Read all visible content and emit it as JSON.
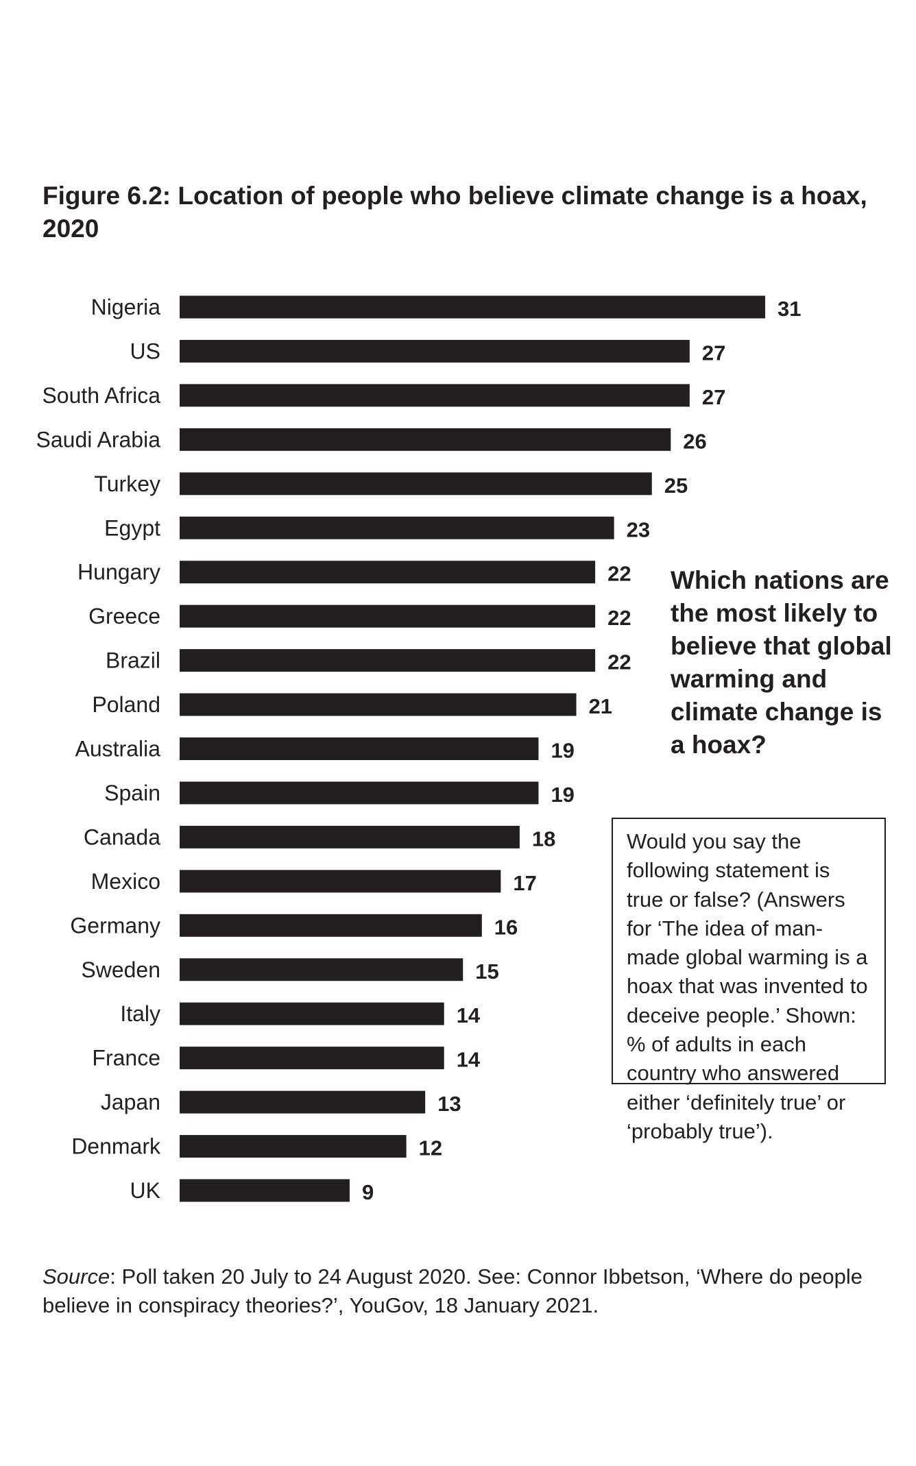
{
  "title": "Figure 6.2: Location of people who believe climate change is a hoax, 2020",
  "question": "Which nations are the most likely to believe that global warming and climate change is a hoax?",
  "note": "Would you say the following statement is true or false? (Answers for ‘The idea of man-made global warming is a hoax that was invented to deceive people.’ Shown: % of adults in each country who answered either ‘definitely true’ or ‘probably true’).",
  "source": {
    "label": "Source",
    "text": ": Poll taken 20 July to 24 August 2020. See: Connor Ibbetson, ‘Where do people believe in conspiracy theories?’, YouGov, 18 January 2021."
  },
  "colors": {
    "bar": "#231f20",
    "text": "#231f20"
  },
  "chart_data": {
    "type": "bar",
    "orientation": "horizontal",
    "title": "Figure 6.2: Location of people who believe climate change is a hoax, 2020",
    "categories": [
      "Nigeria",
      "US",
      "South Africa",
      "Saudi Arabia",
      "Turkey",
      "Egypt",
      "Hungary",
      "Greece",
      "Brazil",
      "Poland",
      "Australia",
      "Spain",
      "Canada",
      "Mexico",
      "Germany",
      "Sweden",
      "Italy",
      "France",
      "Japan",
      "Denmark",
      "UK"
    ],
    "values": [
      31,
      27,
      27,
      26,
      25,
      23,
      22,
      22,
      22,
      21,
      19,
      19,
      18,
      17,
      16,
      15,
      14,
      14,
      13,
      12,
      9
    ],
    "xlim": [
      0,
      31
    ],
    "grid": false,
    "legend": "none"
  }
}
